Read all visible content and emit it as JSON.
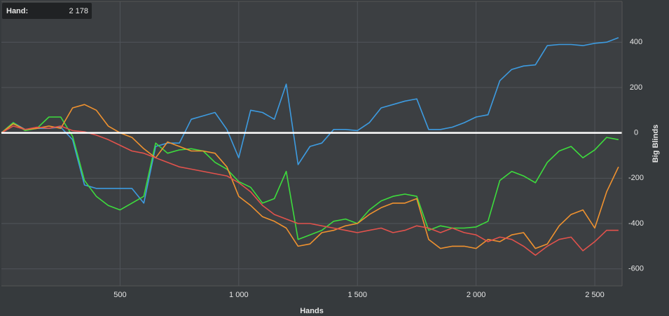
{
  "chart_data": {
    "type": "line",
    "x_label": "Hands",
    "y_label": "Big Blinds",
    "hover": {
      "label": "Hand:",
      "hand": {
        "value": 2178,
        "label": "2 178"
      }
    },
    "x": [
      0,
      50,
      100,
      150,
      200,
      250,
      300,
      350,
      400,
      450,
      500,
      550,
      600,
      650,
      700,
      750,
      800,
      850,
      900,
      950,
      1000,
      1050,
      1100,
      1150,
      1200,
      1250,
      1300,
      1350,
      1400,
      1450,
      1500,
      1550,
      1600,
      1650,
      1700,
      1750,
      1800,
      1850,
      1900,
      1950,
      2000,
      2050,
      2100,
      2150,
      2200,
      2250,
      2300,
      2350,
      2400,
      2450,
      2500,
      2550,
      2600
    ],
    "series": [
      {
        "color": "#3d9be0",
        "values": [
          0,
          45,
          15,
          20,
          20,
          25,
          -30,
          -230,
          -245,
          -245,
          -245,
          -245,
          -310,
          -60,
          -45,
          -45,
          60,
          75,
          90,
          15,
          -110,
          100,
          90,
          60,
          215,
          -140,
          -60,
          -45,
          15,
          15,
          10,
          45,
          110,
          125,
          140,
          150,
          15,
          15,
          25,
          45,
          70,
          80,
          230,
          280,
          295,
          300,
          385,
          390,
          390,
          385,
          395,
          400,
          420
        ]
      },
      {
        "color": "#3ddc3d",
        "values": [
          0,
          45,
          10,
          20,
          70,
          70,
          -15,
          -210,
          -280,
          -320,
          -340,
          -310,
          -280,
          -45,
          -90,
          -75,
          -70,
          -80,
          -130,
          -160,
          -215,
          -240,
          -310,
          -290,
          -170,
          -470,
          -450,
          -430,
          -390,
          -380,
          -400,
          -340,
          -300,
          -280,
          -270,
          -280,
          -430,
          -410,
          -420,
          -420,
          -415,
          -390,
          -210,
          -170,
          -190,
          -220,
          -130,
          -80,
          -60,
          -110,
          -75,
          -20,
          -30
        ]
      },
      {
        "color": "#f0922f",
        "values": [
          0,
          40,
          15,
          20,
          30,
          20,
          110,
          125,
          100,
          30,
          0,
          -20,
          -70,
          -110,
          -40,
          -60,
          -80,
          -80,
          -90,
          -150,
          -280,
          -320,
          -370,
          -390,
          -420,
          -500,
          -490,
          -440,
          -430,
          -410,
          -400,
          -360,
          -330,
          -310,
          -310,
          -290,
          -470,
          -510,
          -500,
          -500,
          -510,
          -470,
          -480,
          -450,
          -440,
          -510,
          -490,
          -410,
          -360,
          -340,
          -420,
          -260,
          -150
        ]
      },
      {
        "color": "#e2524c",
        "values": [
          0,
          30,
          15,
          25,
          20,
          30,
          10,
          5,
          -10,
          -30,
          -55,
          -80,
          -90,
          -110,
          -130,
          -150,
          -160,
          -170,
          -180,
          -190,
          -220,
          -260,
          -320,
          -360,
          -380,
          -400,
          -400,
          -410,
          -420,
          -430,
          -440,
          -430,
          -420,
          -440,
          -430,
          -410,
          -420,
          -440,
          -420,
          -440,
          -450,
          -480,
          -460,
          -470,
          -500,
          -540,
          -500,
          -470,
          -460,
          -520,
          -480,
          -430,
          -430
        ]
      }
    ],
    "xlim": [
      0,
      2615
    ],
    "ylim": [
      -675,
      580
    ],
    "xticks": [
      500,
      {
        "value": 1000,
        "label": "1 000"
      },
      {
        "value": 1500,
        "label": "1 500"
      },
      {
        "value": 2000,
        "label": "2 000"
      },
      {
        "value": 2500,
        "label": "2 500"
      }
    ],
    "yticks": [
      400,
      200,
      0,
      -200,
      -400,
      -600
    ],
    "hline": 0,
    "grid": true
  }
}
